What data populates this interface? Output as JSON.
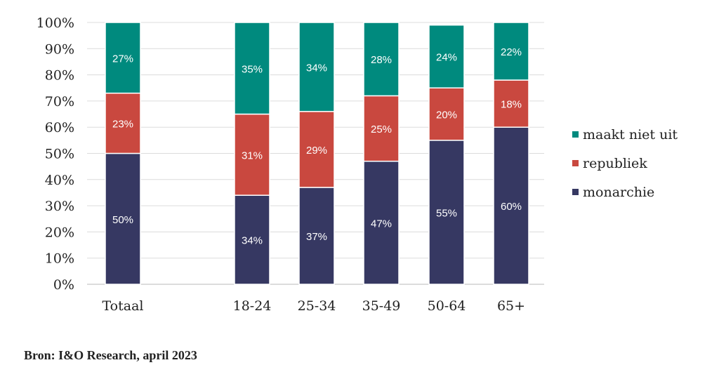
{
  "chart_data": {
    "type": "bar",
    "stacked": true,
    "categories": [
      "Totaal",
      "18-24",
      "25-34",
      "35-49",
      "50-64",
      "65+"
    ],
    "series": [
      {
        "name": "monarchie",
        "color": "#363862",
        "values": [
          50,
          34,
          37,
          47,
          55,
          60
        ],
        "labels": [
          "50%",
          "34%",
          "37%",
          "47%",
          "55%",
          "60%"
        ]
      },
      {
        "name": "republiek",
        "color": "#c9483f",
        "values": [
          23,
          31,
          29,
          25,
          20,
          18
        ],
        "labels": [
          "23%",
          "31%",
          "29%",
          "25%",
          "20%",
          "18%"
        ]
      },
      {
        "name": "maakt niet uit",
        "color": "#008a7e",
        "values": [
          27,
          35,
          34,
          28,
          24,
          22
        ],
        "labels": [
          "27%",
          "35%",
          "34%",
          "28%",
          "24%",
          "22%"
        ]
      }
    ],
    "yticks": [
      "0%",
      "10%",
      "20%",
      "30%",
      "40%",
      "50%",
      "60%",
      "70%",
      "80%",
      "90%",
      "100%"
    ],
    "ylim": [
      0,
      100
    ],
    "grid": true,
    "legend": {
      "placement": "right",
      "order": [
        "maakt niet uit",
        "republiek",
        "monarchie"
      ]
    }
  },
  "source": "Bron: I&O Research, april 2023"
}
